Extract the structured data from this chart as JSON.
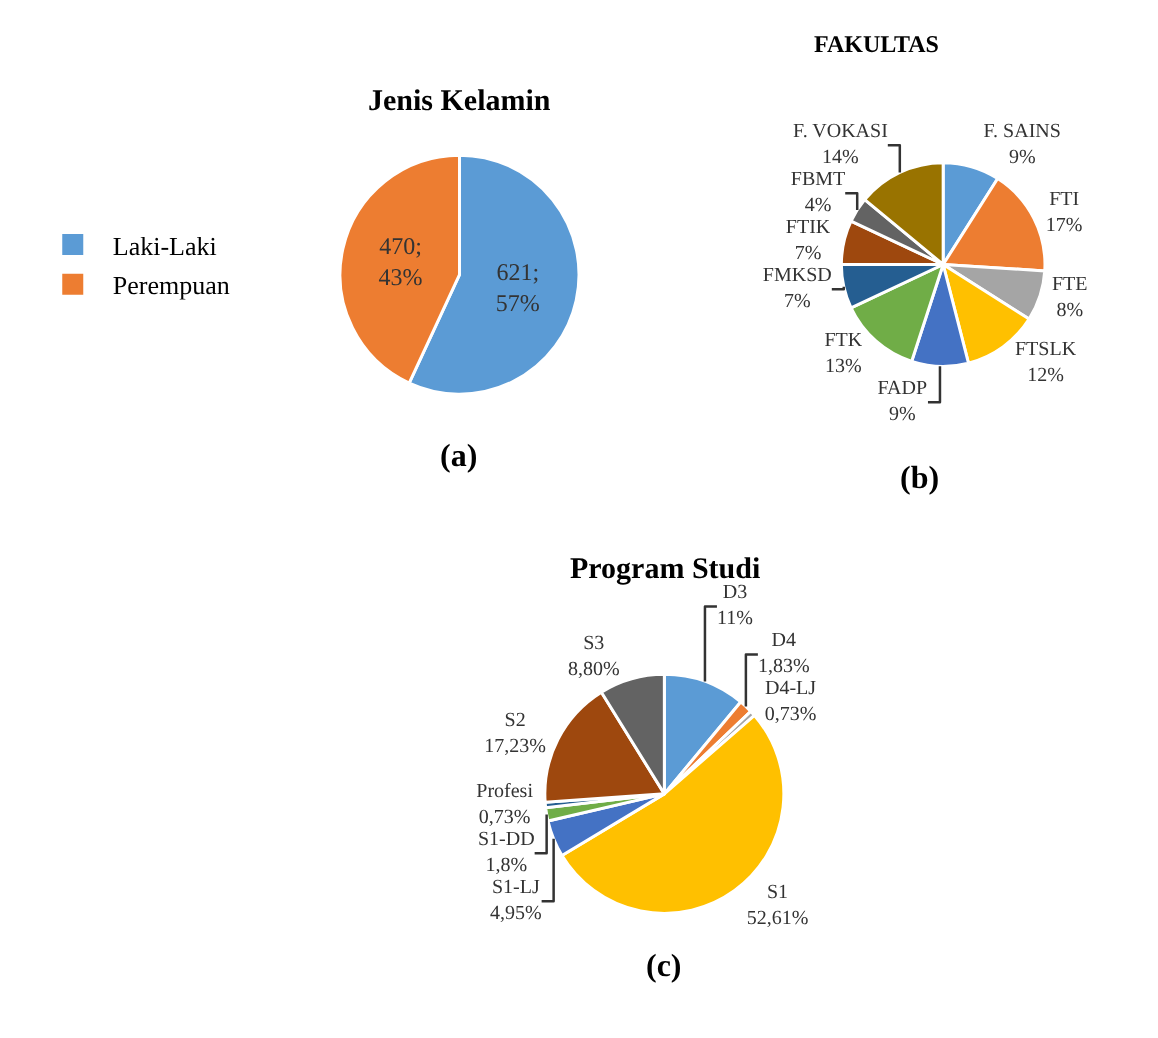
{
  "chart_data": [
    {
      "type": "pie",
      "title": "Jenis Kelamin",
      "categories": [
        "Laki-Laki",
        "Perempuan"
      ],
      "values": [
        621,
        470
      ],
      "colors": [
        "#5b9bd5",
        "#ed7d31"
      ],
      "value_labels": [
        "621;\n57%",
        "470;\n43%"
      ],
      "legend": "left",
      "annotations": [
        "(a)"
      ]
    },
    {
      "type": "pie",
      "title": "FAKULTAS",
      "categories": [
        "F. SAINS",
        "FTI",
        "FTE",
        "FTSLK",
        "FADP",
        "FTK",
        "FMKSD",
        "FTIK",
        "FBMT",
        "F. VOKASI"
      ],
      "values": [
        9,
        17,
        8,
        12,
        9,
        13,
        7,
        7,
        4,
        14
      ],
      "colors": [
        "#5b9bd5",
        "#ed7d31",
        "#a5a5a5",
        "#ffc000",
        "#4472c4",
        "#70ad47",
        "#255e91",
        "#9e480e",
        "#636363",
        "#997300"
      ],
      "value_labels": [
        "9%",
        "17%",
        "8%",
        "12%",
        "9%",
        "13%",
        "7%",
        "7%",
        "4%",
        "14%"
      ],
      "legend": false,
      "annotations": [
        "(b)"
      ]
    },
    {
      "type": "pie",
      "title": "Program Studi",
      "categories": [
        "D3",
        "D4",
        "D4-LJ",
        "S1",
        "S1-LJ",
        "S1-DD",
        "Profesi",
        "S2",
        "S3"
      ],
      "values": [
        11,
        1.83,
        0.73,
        52.61,
        4.95,
        1.8,
        0.73,
        17.23,
        8.8
      ],
      "colors": [
        "#5b9bd5",
        "#ed7d31",
        "#a5a5a5",
        "#ffc000",
        "#4472c4",
        "#70ad47",
        "#255e91",
        "#9e480e",
        "#636363"
      ],
      "value_labels": [
        "11%",
        "1,83%",
        "0,73%",
        "52,61%",
        "4,95%",
        "1,8%",
        "0,73%",
        "17,23%",
        "8,80%"
      ],
      "legend": false,
      "annotations": [
        "(c)"
      ]
    }
  ]
}
